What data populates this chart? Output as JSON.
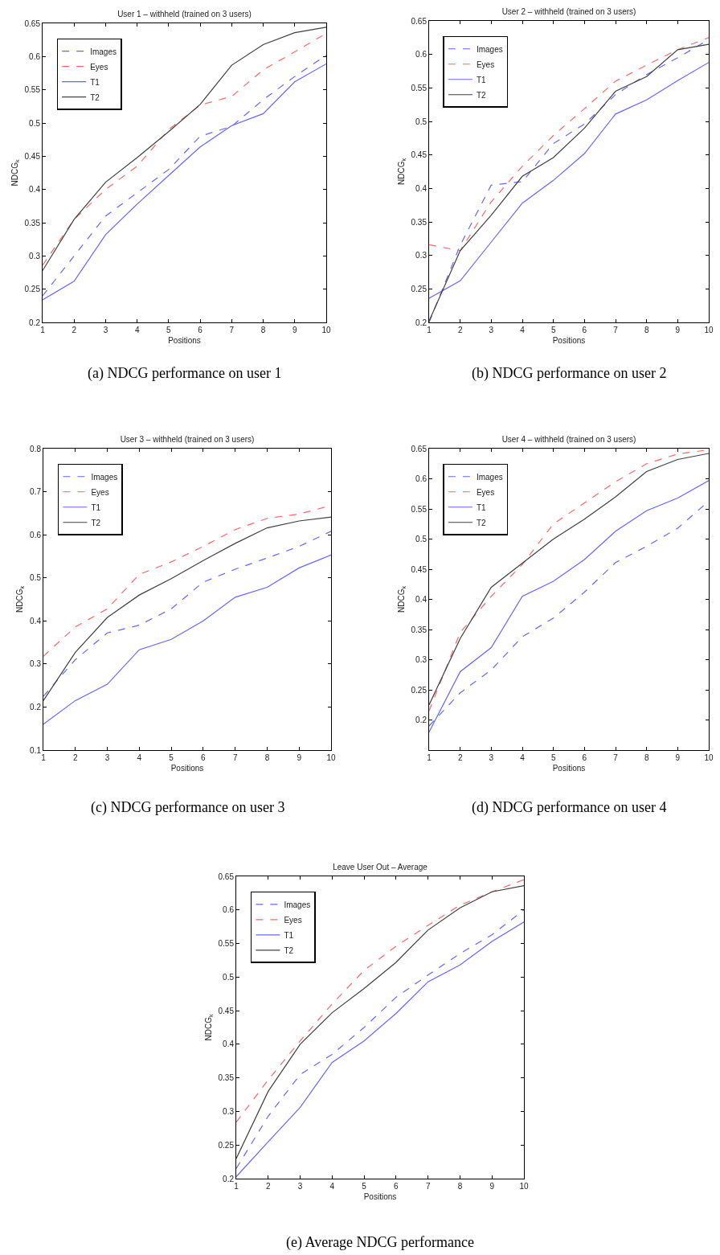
{
  "chart_data": [
    {
      "type": "line",
      "title": "User 1 – withheld (trained on 3 users)",
      "xlabel": "Positions",
      "ylabel": "NDCG$_{k}$",
      "annotations": [
        "(a) NDCG performance on user 1"
      ],
      "x": [
        1,
        2,
        3,
        4,
        5,
        6,
        7,
        8,
        9,
        10
      ],
      "xlim": [
        1,
        10
      ],
      "xticks": [
        1,
        2,
        3,
        4,
        5,
        6,
        7,
        8,
        9,
        10
      ],
      "ylim": [
        0.2,
        0.65
      ],
      "yticks": [
        0.2,
        0.25,
        0.3,
        0.35,
        0.4,
        0.45,
        0.5,
        0.55,
        0.6,
        0.65
      ],
      "legend": "top left",
      "series": [
        {
          "name": "Images",
          "color": "#6666ff",
          "line_style": "dashed",
          "values": [
            0.24,
            0.3,
            0.36,
            0.395,
            0.43,
            0.48,
            0.495,
            0.535,
            0.57,
            0.602
          ]
        },
        {
          "name": "Eyes",
          "color": "#ff6666",
          "line_style": "dashed",
          "values": [
            0.286,
            0.355,
            0.4,
            0.435,
            0.49,
            0.527,
            0.54,
            0.58,
            0.607,
            0.635
          ]
        },
        {
          "name": "T1",
          "color": "#6666ff",
          "line_style": "solid",
          "values": [
            0.234,
            0.262,
            0.332,
            0.378,
            0.421,
            0.464,
            0.496,
            0.514,
            0.562,
            0.589
          ]
        },
        {
          "name": "T2",
          "color": "#404040",
          "line_style": "solid",
          "values": [
            0.278,
            0.355,
            0.411,
            0.448,
            0.487,
            0.528,
            0.587,
            0.618,
            0.636,
            0.644
          ]
        }
      ]
    },
    {
      "type": "line",
      "title": "User 2 – withheld (trained on 3 users)",
      "xlabel": "Positions",
      "ylabel": "NDCG$_{k}$",
      "annotations": [
        "(b) NDCG performance on user 2"
      ],
      "x": [
        1,
        2,
        3,
        4,
        5,
        6,
        7,
        8,
        9,
        10
      ],
      "xlim": [
        1,
        10
      ],
      "xticks": [
        1,
        2,
        3,
        4,
        5,
        6,
        7,
        8,
        9,
        10
      ],
      "ylim": [
        0.2,
        0.65
      ],
      "yticks": [
        0.2,
        0.25,
        0.3,
        0.35,
        0.4,
        0.45,
        0.5,
        0.55,
        0.6,
        0.65
      ],
      "legend": "top left",
      "series": [
        {
          "name": "Images",
          "color": "#6666ff",
          "line_style": "dashed",
          "values": [
            0.2,
            0.315,
            0.405,
            0.41,
            0.467,
            0.496,
            0.54,
            0.57,
            0.595,
            0.622
          ]
        },
        {
          "name": "Eyes",
          "color": "#ff6666",
          "line_style": "dashed",
          "values": [
            0.316,
            0.307,
            0.38,
            0.433,
            0.479,
            0.519,
            0.56,
            0.584,
            0.607,
            0.625
          ]
        },
        {
          "name": "T1",
          "color": "#6666ff",
          "line_style": "solid",
          "values": [
            0.236,
            0.262,
            0.32,
            0.378,
            0.412,
            0.452,
            0.511,
            0.532,
            0.561,
            0.588
          ]
        },
        {
          "name": "T2",
          "color": "#404040",
          "line_style": "solid",
          "values": [
            0.202,
            0.307,
            0.36,
            0.418,
            0.446,
            0.49,
            0.545,
            0.567,
            0.607,
            0.615
          ]
        }
      ]
    },
    {
      "type": "line",
      "title": "User 3 – withheld (trained on 3 users)",
      "xlabel": "Positions",
      "ylabel": "NDCG$_{k}$",
      "annotations": [
        "(c) NDCG performance on user 3"
      ],
      "x": [
        1,
        2,
        3,
        4,
        5,
        6,
        7,
        8,
        9,
        10
      ],
      "xlim": [
        1,
        10
      ],
      "xticks": [
        1,
        2,
        3,
        4,
        5,
        6,
        7,
        8,
        9,
        10
      ],
      "ylim": [
        0.1,
        0.8
      ],
      "yticks": [
        0.1,
        0.2,
        0.3,
        0.4,
        0.5,
        0.6,
        0.7,
        0.8
      ],
      "legend": "top left",
      "series": [
        {
          "name": "Images",
          "color": "#6666ff",
          "line_style": "dashed",
          "values": [
            0.225,
            0.31,
            0.372,
            0.39,
            0.428,
            0.49,
            0.52,
            0.546,
            0.573,
            0.608
          ]
        },
        {
          "name": "Eyes",
          "color": "#ff6666",
          "line_style": "dashed",
          "values": [
            0.318,
            0.386,
            0.428,
            0.508,
            0.537,
            0.573,
            0.612,
            0.638,
            0.648,
            0.668
          ]
        },
        {
          "name": "T1",
          "color": "#6666ff",
          "line_style": "solid",
          "values": [
            0.16,
            0.215,
            0.253,
            0.333,
            0.357,
            0.4,
            0.455,
            0.478,
            0.523,
            0.553
          ]
        },
        {
          "name": "T2",
          "color": "#404040",
          "line_style": "solid",
          "values": [
            0.215,
            0.327,
            0.408,
            0.46,
            0.498,
            0.54,
            0.58,
            0.616,
            0.632,
            0.641
          ]
        }
      ]
    },
    {
      "type": "line",
      "title": "User 4 – withheld (trained on 3 users)",
      "xlabel": "Positions",
      "ylabel": "NDCG$_{k}$",
      "annotations": [
        "(d) NDCG performance on user 4"
      ],
      "x": [
        1,
        2,
        3,
        4,
        5,
        6,
        7,
        8,
        9,
        10
      ],
      "xlim": [
        1,
        10
      ],
      "xticks": [
        1,
        2,
        3,
        4,
        5,
        6,
        7,
        8,
        9,
        10
      ],
      "ylim": [
        0.15,
        0.65
      ],
      "yticks": [
        0.2,
        0.25,
        0.3,
        0.35,
        0.4,
        0.45,
        0.5,
        0.55,
        0.6,
        0.65
      ],
      "legend": "top left",
      "series": [
        {
          "name": "Images",
          "color": "#6666ff",
          "line_style": "dashed",
          "values": [
            0.19,
            0.245,
            0.283,
            0.338,
            0.369,
            0.412,
            0.461,
            0.488,
            0.518,
            0.563
          ]
        },
        {
          "name": "Eyes",
          "color": "#ff6666",
          "line_style": "dashed",
          "values": [
            0.215,
            0.345,
            0.405,
            0.458,
            0.525,
            0.56,
            0.595,
            0.625,
            0.641,
            0.648
          ]
        },
        {
          "name": "T1",
          "color": "#6666ff",
          "line_style": "solid",
          "values": [
            0.18,
            0.28,
            0.32,
            0.405,
            0.43,
            0.466,
            0.513,
            0.547,
            0.568,
            0.597
          ]
        },
        {
          "name": "T2",
          "color": "#404040",
          "line_style": "solid",
          "values": [
            0.225,
            0.335,
            0.42,
            0.46,
            0.5,
            0.533,
            0.57,
            0.612,
            0.632,
            0.642
          ]
        }
      ]
    },
    {
      "type": "line",
      "title": "Leave User Out – Average",
      "xlabel": "Positions",
      "ylabel": "NDCG$_{k}$",
      "annotations": [
        "(e) Average NDCG performance"
      ],
      "x": [
        1,
        2,
        3,
        4,
        5,
        6,
        7,
        8,
        9,
        10
      ],
      "xlim": [
        1,
        10
      ],
      "xticks": [
        1,
        2,
        3,
        4,
        5,
        6,
        7,
        8,
        9,
        10
      ],
      "ylim": [
        0.2,
        0.65
      ],
      "yticks": [
        0.2,
        0.25,
        0.3,
        0.35,
        0.4,
        0.45,
        0.5,
        0.55,
        0.6,
        0.65
      ],
      "legend": "top left",
      "series": [
        {
          "name": "Images",
          "color": "#6666ff",
          "line_style": "dashed",
          "values": [
            0.215,
            0.293,
            0.355,
            0.385,
            0.425,
            0.47,
            0.503,
            0.535,
            0.563,
            0.6
          ]
        },
        {
          "name": "Eyes",
          "color": "#ff6666",
          "line_style": "dashed",
          "values": [
            0.284,
            0.347,
            0.405,
            0.46,
            0.51,
            0.546,
            0.577,
            0.607,
            0.627,
            0.645
          ]
        },
        {
          "name": "T1",
          "color": "#6666ff",
          "line_style": "solid",
          "values": [
            0.203,
            0.255,
            0.306,
            0.373,
            0.405,
            0.446,
            0.493,
            0.518,
            0.553,
            0.582
          ]
        },
        {
          "name": "T2",
          "color": "#404040",
          "line_style": "solid",
          "values": [
            0.23,
            0.33,
            0.4,
            0.447,
            0.483,
            0.522,
            0.57,
            0.603,
            0.627,
            0.636
          ]
        }
      ]
    }
  ]
}
